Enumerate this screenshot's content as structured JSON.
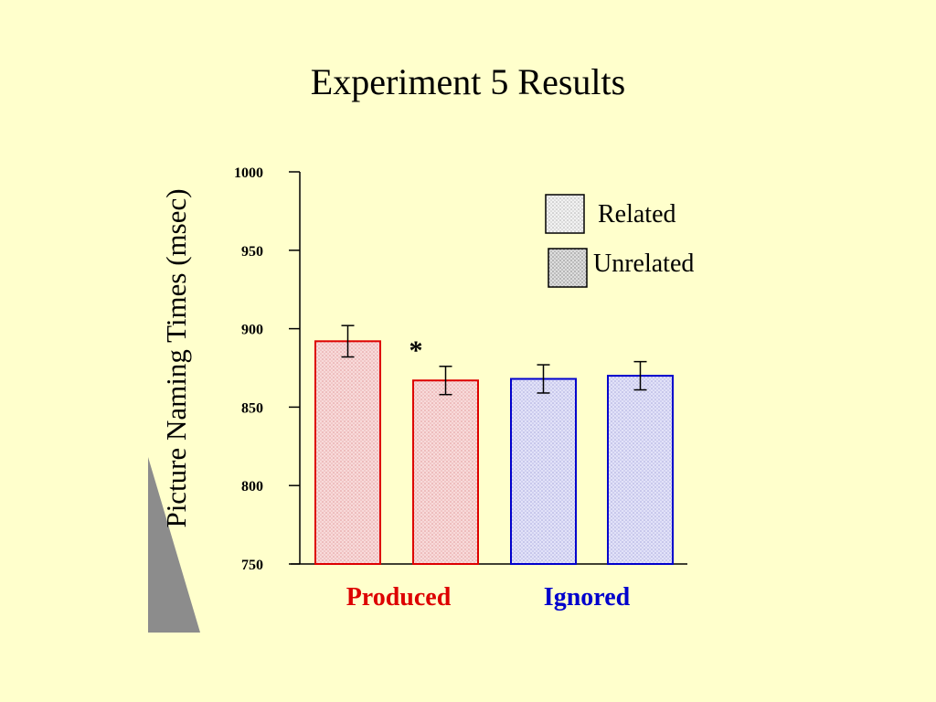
{
  "slide": {
    "title": "Experiment 5 Results"
  },
  "chart_data": {
    "type": "bar",
    "title": "Experiment 5 Results",
    "ylabel": "Picture Naming Times (msec)",
    "xlabel": "",
    "ylim": [
      750,
      1000
    ],
    "yticks": [
      750,
      800,
      850,
      900,
      950,
      1000
    ],
    "grid": false,
    "legend_placement": "top-right",
    "groups": [
      {
        "name": "Produced",
        "color": "#dd0000"
      },
      {
        "name": "Ignored",
        "color": "#0000cc"
      }
    ],
    "series": [
      {
        "name": "Related",
        "values": [
          892,
          868
        ],
        "errors": [
          10,
          9
        ]
      },
      {
        "name": "Unrelated",
        "values": [
          867,
          870
        ],
        "errors": [
          9,
          9
        ]
      }
    ],
    "annotations": [
      {
        "text": "*",
        "near": "Produced"
      }
    ],
    "colors": {
      "produced_stroke": "#dd0000",
      "produced_fill": "#f4cccc",
      "ignored_stroke": "#0000cc",
      "ignored_fill": "#d8d8f4",
      "legend_related_fill": "#ececec",
      "legend_unrelated_fill": "#cfcfcf"
    }
  }
}
